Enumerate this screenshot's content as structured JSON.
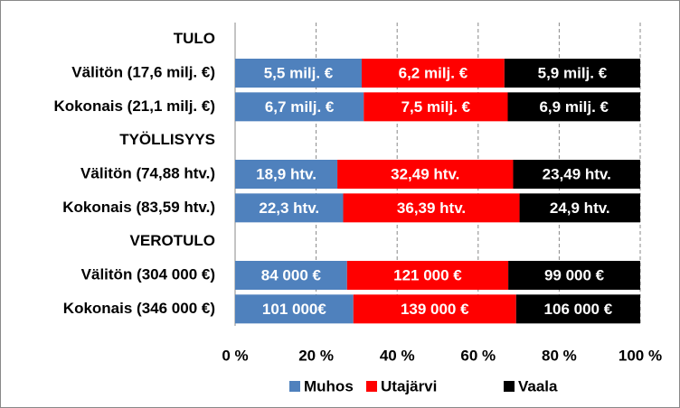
{
  "chart_data": {
    "type": "bar",
    "orientation": "horizontal",
    "stacked": "percent",
    "categories": [
      "TULO",
      "Välitön (17,6 milj. €)",
      "Kokonais (21,1 milj. €)",
      "TYÖLLISYYS",
      "Välitön (74,88 htv.)",
      "Kokonais (83,59 htv.)",
      "VEROTULO",
      "Välitön (304 000 €)",
      "Kokonais (346 000 €)"
    ],
    "series": [
      {
        "name": "Muhos",
        "color": "#4f81bd",
        "values": [
          null,
          5.5,
          6.7,
          null,
          18.9,
          22.3,
          null,
          84000,
          101000
        ],
        "value_labels": [
          null,
          "5,5 milj. €",
          "6,7 milj. €",
          null,
          "18,9 htv.",
          "22,3 htv.",
          null,
          "84 000 €",
          "101 000€"
        ]
      },
      {
        "name": "Utajärvi",
        "color": "#ff0000",
        "values": [
          null,
          6.2,
          7.5,
          null,
          32.49,
          36.39,
          null,
          121000,
          139000
        ],
        "value_labels": [
          null,
          "6,2 milj. €",
          "7,5 milj. €",
          null,
          "32,49 htv.",
          "36,39 htv.",
          null,
          "121 000 €",
          "139 000 €"
        ]
      },
      {
        "name": "Vaala",
        "color": "#000000",
        "values": [
          null,
          5.9,
          6.9,
          null,
          23.49,
          24.9,
          null,
          99000,
          106000
        ],
        "value_labels": [
          null,
          "5,9 milj. €",
          "6,9 milj. €",
          null,
          "23,49 htv.",
          "24,9 htv.",
          null,
          "99 000 €",
          "106 000 €"
        ]
      }
    ],
    "xlim": [
      0,
      100
    ],
    "xticks": [
      {
        "value": 0,
        "label": "0 %"
      },
      {
        "value": 20,
        "label": "20 %"
      },
      {
        "value": 40,
        "label": "40 %"
      },
      {
        "value": 60,
        "label": "60 %"
      },
      {
        "value": 80,
        "label": "80 %"
      },
      {
        "value": 100,
        "label": "100 %"
      }
    ],
    "grid": true,
    "legend": "bottom"
  }
}
